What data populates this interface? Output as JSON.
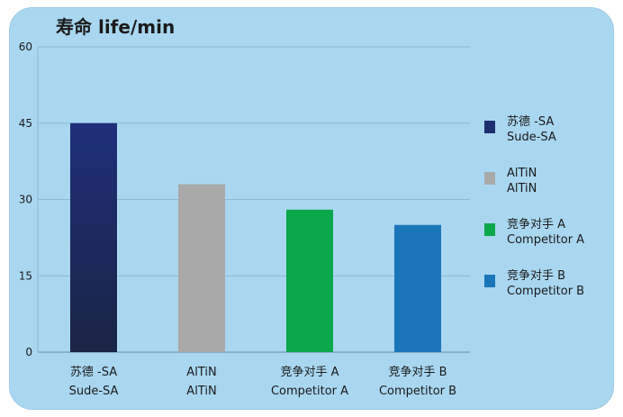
{
  "chart_data": {
    "type": "bar",
    "title": "寿命 life/min",
    "categories": [
      {
        "zh": "苏德 -SA",
        "en": "Sude-SA"
      },
      {
        "zh": "AlTiN",
        "en": "AlTiN"
      },
      {
        "zh": "竞争对手 A",
        "en": "Competitor A"
      },
      {
        "zh": "竞争对手 B",
        "en": "Competitor B"
      }
    ],
    "values": [
      45,
      33,
      28,
      25
    ],
    "colors": [
      "#1d2f6e",
      "#a9a9a9",
      "#0aa84a",
      "#1b75b9"
    ],
    "yticks": [
      "60",
      "45",
      "30",
      "15",
      "0"
    ],
    "ylim": [
      0,
      60
    ],
    "legend_position": "right",
    "legend": [
      {
        "zh": "苏德 -SA",
        "en": "Sude-SA",
        "color": "#1d2f6e"
      },
      {
        "zh": "AlTiN",
        "en": "AlTiN",
        "color": "#a9a9a9"
      },
      {
        "zh": "竞争对手 A",
        "en": "Competitor A",
        "color": "#0aa84a"
      },
      {
        "zh": "竞争对手 B",
        "en": "Competitor B",
        "color": "#1b75b9"
      }
    ]
  }
}
